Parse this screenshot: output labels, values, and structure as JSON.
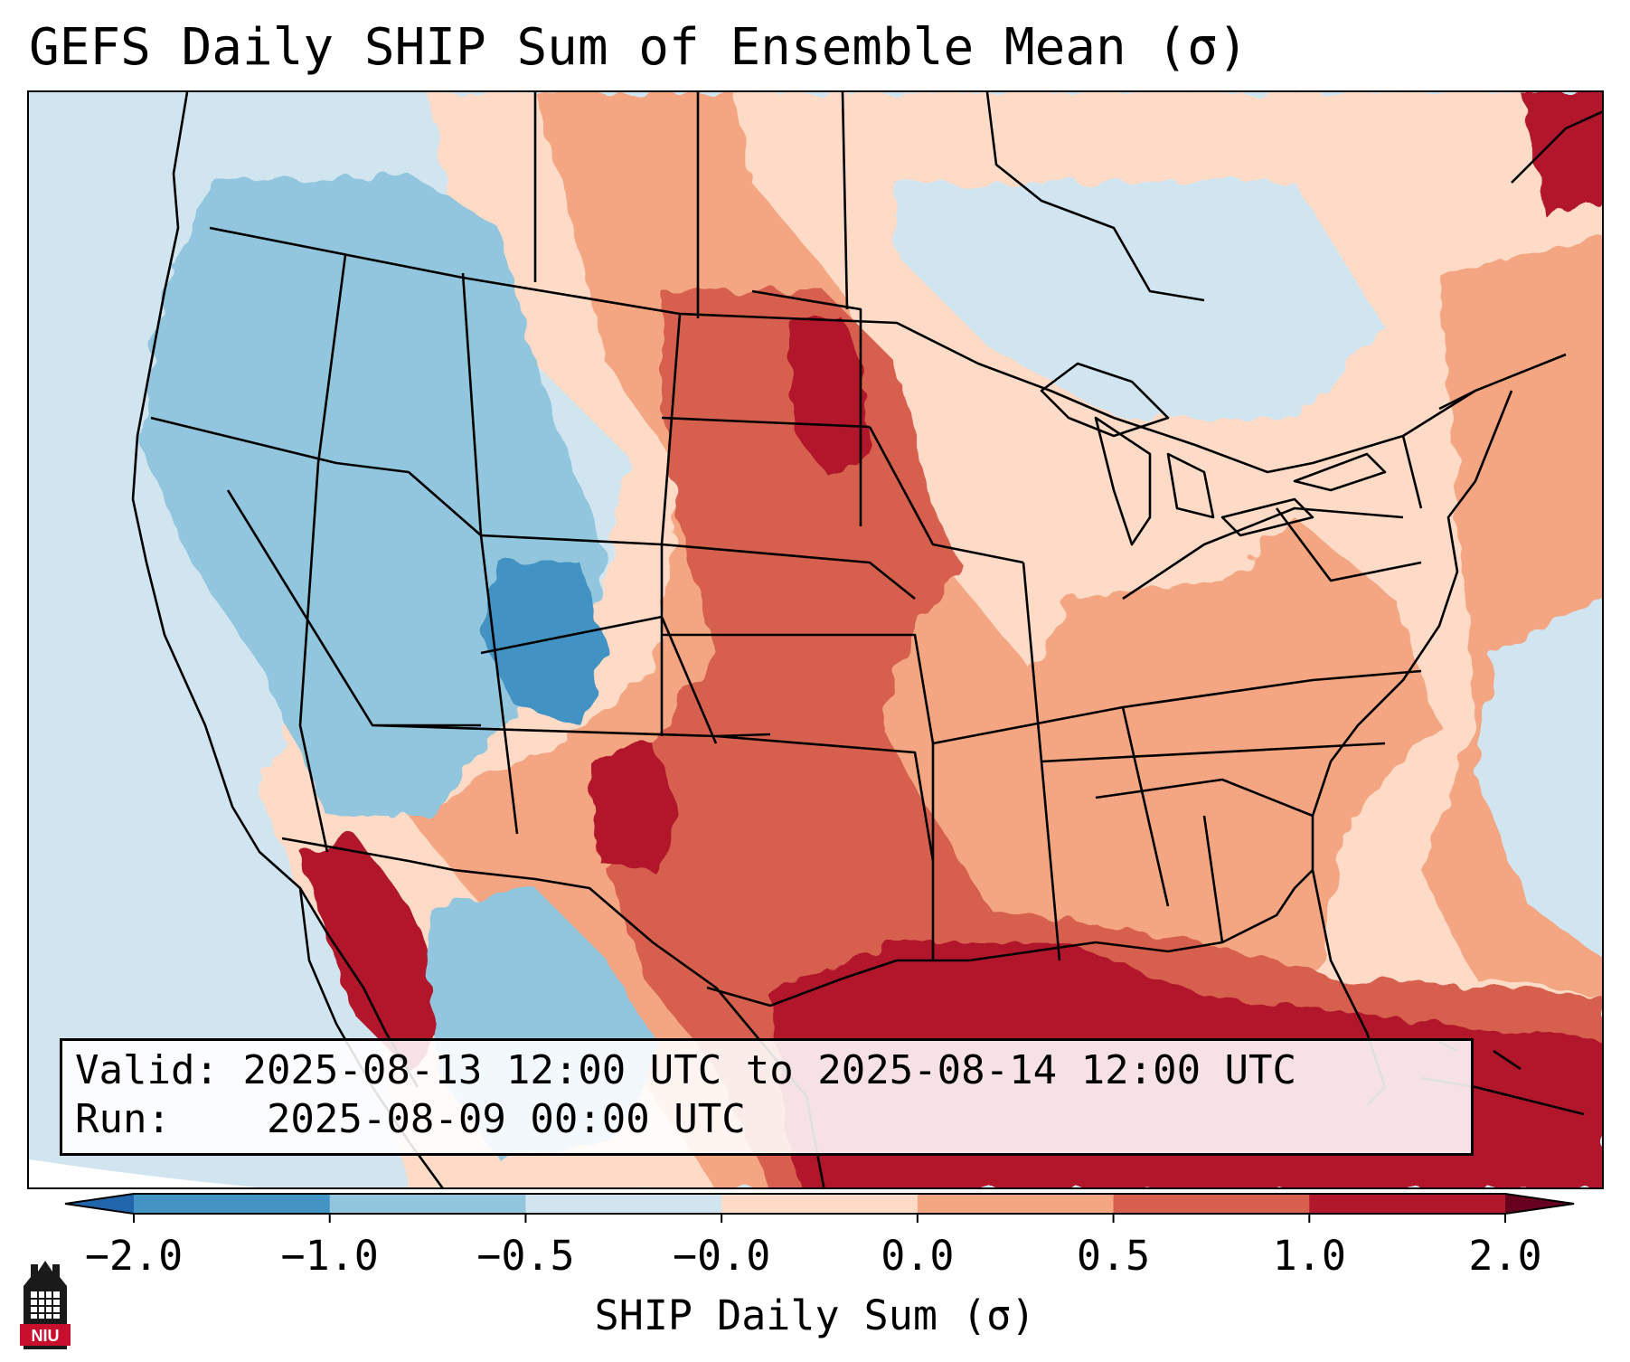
{
  "title": "GEFS Daily SHIP Sum of Ensemble Mean (σ)",
  "info_box": {
    "valid_label": "Valid:",
    "valid_range": "2025-08-13 12:00 UTC to 2025-08-14 12:00 UTC",
    "run_label": "Run:",
    "run_time": "2025-08-09 00:00 UTC"
  },
  "colorbar": {
    "label": "SHIP Daily Sum (σ)",
    "ticks": [
      "−2.0",
      "−1.0",
      "−0.5",
      "−0.0",
      "0.0",
      "0.5",
      "1.0",
      "2.0"
    ],
    "colors": [
      "#4393c3",
      "#92c5de",
      "#d1e5f0",
      "#fddbc7",
      "#f4a582",
      "#d6604d",
      "#b2182b"
    ],
    "under_color": "#2166ac",
    "over_color": "#67001f"
  },
  "map_colors": {
    "ocean_low": "#d1e5f0",
    "boundaries": "#000000"
  },
  "logo": {
    "text": "NIU",
    "color": "#c8102e"
  }
}
